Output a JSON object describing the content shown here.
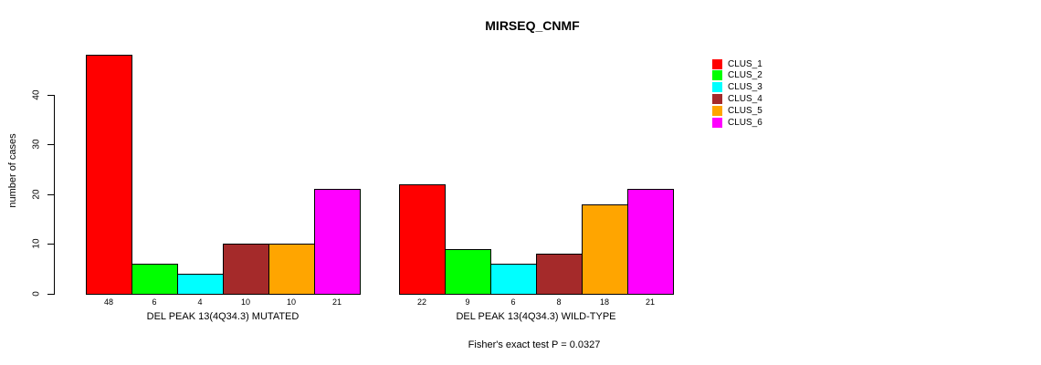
{
  "chart_data": {
    "type": "bar",
    "title": "MIRSEQ_CNMF",
    "xlabel": "",
    "ylabel": "number of cases",
    "ylim": [
      0,
      48
    ],
    "yticks": [
      0,
      10,
      20,
      30,
      40
    ],
    "grid": false,
    "legend_position": "right",
    "categories": [
      "DEL PEAK 13(4Q34.3) MUTATED",
      "DEL PEAK 13(4Q34.3) WILD-TYPE"
    ],
    "series": [
      {
        "name": "CLUS_1",
        "color": "#FF0000",
        "values": [
          48,
          22
        ]
      },
      {
        "name": "CLUS_2",
        "color": "#00FF00",
        "values": [
          6,
          9
        ]
      },
      {
        "name": "CLUS_3",
        "color": "#00FFFF",
        "values": [
          4,
          6
        ]
      },
      {
        "name": "CLUS_4",
        "color": "#A52A2A",
        "values": [
          10,
          8
        ]
      },
      {
        "name": "CLUS_5",
        "color": "#FFA500",
        "values": [
          10,
          18
        ]
      },
      {
        "name": "CLUS_6",
        "color": "#FF00FF",
        "values": [
          21,
          21
        ]
      }
    ],
    "bar_value_labels": [
      [
        48,
        6,
        4,
        10,
        10,
        21
      ],
      [
        22,
        9,
        6,
        8,
        18,
        21
      ]
    ],
    "annotation": "Fisher's exact test P = 0.0327"
  }
}
